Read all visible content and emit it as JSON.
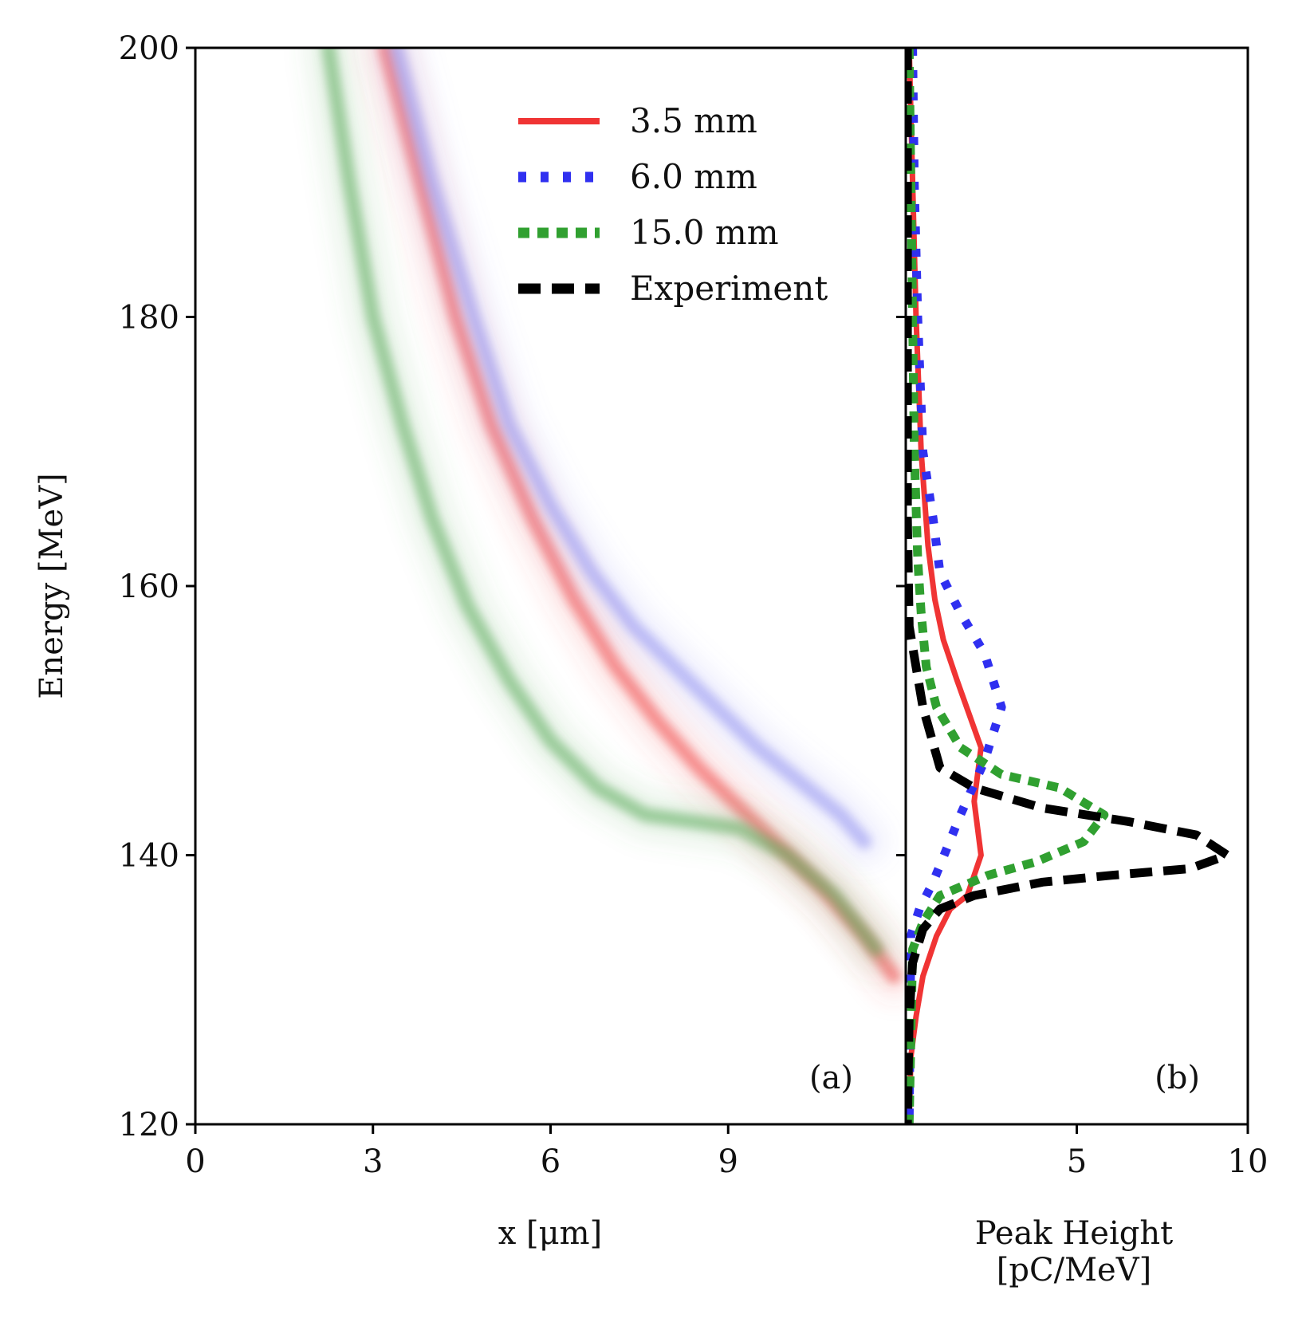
{
  "chart_data": [
    {
      "type": "heatmap",
      "panel_label": "(a)",
      "xlabel": "x [μm]",
      "ylabel": "Energy [MeV]",
      "xlim": [
        0,
        12
      ],
      "ylim": [
        120,
        200
      ],
      "x_ticks": [
        0,
        3,
        6,
        9
      ],
      "y_ticks": [
        120,
        140,
        160,
        180,
        200
      ],
      "series": [
        {
          "name": "3.5 mm",
          "color": "#f04040",
          "ridge": [
            [
              3.2,
              200
            ],
            [
              3.8,
              190
            ],
            [
              4.4,
              180
            ],
            [
              5.0,
              172
            ],
            [
              5.7,
              165
            ],
            [
              6.4,
              159
            ],
            [
              7.1,
              154
            ],
            [
              7.8,
              150
            ],
            [
              8.5,
              146.5
            ],
            [
              9.2,
              143.5
            ],
            [
              9.9,
              140.5
            ],
            [
              10.6,
              137.5
            ],
            [
              11.3,
              134
            ],
            [
              11.8,
              131
            ]
          ]
        },
        {
          "name": "6.0 mm",
          "color": "#8c8cf0",
          "ridge": [
            [
              3.4,
              200
            ],
            [
              4.0,
              190
            ],
            [
              4.7,
              180
            ],
            [
              5.3,
              172
            ],
            [
              6.0,
              166
            ],
            [
              6.7,
              161
            ],
            [
              7.4,
              157
            ],
            [
              8.1,
              154
            ],
            [
              8.8,
              151
            ],
            [
              9.5,
              148
            ],
            [
              10.2,
              145.5
            ],
            [
              10.9,
              143
            ],
            [
              11.3,
              141
            ]
          ]
        },
        {
          "name": "15.0 mm",
          "color": "#58a858",
          "ridge": [
            [
              2.25,
              200
            ],
            [
              2.6,
              190
            ],
            [
              3.0,
              180
            ],
            [
              3.5,
              172
            ],
            [
              4.0,
              165
            ],
            [
              4.6,
              158.5
            ],
            [
              5.3,
              153
            ],
            [
              6.0,
              148.5
            ],
            [
              6.8,
              145
            ],
            [
              7.6,
              143
            ],
            [
              8.4,
              142.5
            ],
            [
              9.2,
              142
            ],
            [
              10.0,
              140
            ],
            [
              10.8,
              137
            ],
            [
              11.5,
              133
            ]
          ]
        }
      ]
    },
    {
      "type": "line",
      "panel_label": "(b)",
      "xlabel": "Peak Height\n[pC/MeV]",
      "xlim": [
        0,
        10
      ],
      "ylim": [
        120,
        200
      ],
      "x_ticks": [
        5,
        10
      ],
      "legend_position": "upper-left of panel (a)",
      "series": [
        {
          "name": "3.5 mm",
          "color": "#f03434",
          "style": "solid",
          "points": [
            [
              0.1,
              200
            ],
            [
              0.2,
              190
            ],
            [
              0.3,
              180
            ],
            [
              0.45,
              170
            ],
            [
              0.65,
              163
            ],
            [
              0.85,
              159
            ],
            [
              1.1,
              156
            ],
            [
              1.5,
              153
            ],
            [
              2.2,
              148
            ],
            [
              2.0,
              144
            ],
            [
              2.2,
              140
            ],
            [
              1.8,
              137
            ],
            [
              1.3,
              136
            ],
            [
              0.9,
              134
            ],
            [
              0.5,
              131
            ],
            [
              0.3,
              128
            ],
            [
              0.15,
              125
            ],
            [
              0.1,
              120
            ]
          ]
        },
        {
          "name": "6.0 mm",
          "color": "#3030f0",
          "style": "dotted",
          "points": [
            [
              0.2,
              200
            ],
            [
              0.25,
              190
            ],
            [
              0.35,
              180
            ],
            [
              0.5,
              170
            ],
            [
              0.8,
              165
            ],
            [
              1.0,
              161
            ],
            [
              1.6,
              158
            ],
            [
              2.3,
              155
            ],
            [
              2.8,
              151
            ],
            [
              2.3,
              147
            ],
            [
              1.6,
              143
            ],
            [
              1.2,
              140.5
            ],
            [
              0.8,
              138
            ],
            [
              0.4,
              136
            ],
            [
              0.15,
              134
            ],
            [
              0.1,
              120
            ]
          ]
        },
        {
          "name": "15.0 mm",
          "color": "#30a030",
          "style": "densely-dotted",
          "points": [
            [
              0.1,
              200
            ],
            [
              0.15,
              190
            ],
            [
              0.2,
              180
            ],
            [
              0.25,
              170
            ],
            [
              0.35,
              162
            ],
            [
              0.45,
              158
            ],
            [
              0.6,
              154
            ],
            [
              0.9,
              151
            ],
            [
              1.6,
              148
            ],
            [
              2.8,
              146
            ],
            [
              4.5,
              145
            ],
            [
              5.8,
              143
            ],
            [
              5.2,
              141
            ],
            [
              3.8,
              139.5
            ],
            [
              2.4,
              138.5
            ],
            [
              1.0,
              137
            ],
            [
              0.5,
              135
            ],
            [
              0.2,
              133
            ],
            [
              0.1,
              120
            ]
          ]
        },
        {
          "name": "Experiment",
          "color": "#000000",
          "style": "dashed",
          "points": [
            [
              0.05,
              200
            ],
            [
              0.05,
              180
            ],
            [
              0.05,
              165
            ],
            [
              0.1,
              157
            ],
            [
              0.3,
              154
            ],
            [
              0.5,
              151
            ],
            [
              1.0,
              146.5
            ],
            [
              2.0,
              145
            ],
            [
              4.0,
              143.5
            ],
            [
              6.5,
              142.5
            ],
            [
              8.5,
              141.5
            ],
            [
              9.4,
              140
            ],
            [
              8.3,
              139
            ],
            [
              6.0,
              138.5
            ],
            [
              4.0,
              138
            ],
            [
              2.0,
              137
            ],
            [
              1.0,
              136
            ],
            [
              0.5,
              134.5
            ],
            [
              0.2,
              132
            ],
            [
              0.1,
              128
            ],
            [
              0.05,
              120
            ]
          ]
        }
      ]
    }
  ],
  "legend": [
    {
      "label": "3.5 mm",
      "color": "#f03434",
      "style": "solid"
    },
    {
      "label": "6.0 mm",
      "color": "#3030f0",
      "style": "dotted"
    },
    {
      "label": "15.0 mm",
      "color": "#30a030",
      "style": "densely-dotted"
    },
    {
      "label": "Experiment",
      "color": "#000000",
      "style": "dashed"
    }
  ]
}
